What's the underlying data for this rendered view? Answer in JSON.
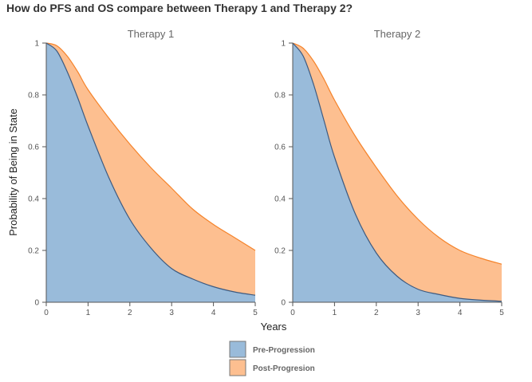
{
  "title": "How do PFS and OS compare between Therapy 1 and Therapy 2?",
  "colors": {
    "pre_fill": "#99bbda",
    "pre_line": "#3d5a80",
    "post_fill": "#fdbf90",
    "post_line": "#f5832a",
    "axis": "#555555"
  },
  "chart_data": {
    "type": "area",
    "xlabel": "Years",
    "ylabel": "Probability of Being in State",
    "xlim": [
      0,
      5
    ],
    "ylim": [
      0,
      1
    ],
    "x_ticks": [
      "0",
      "1",
      "2",
      "3",
      "4",
      "5"
    ],
    "y_ticks": [
      "0",
      "0.2",
      "0.4",
      "0.6",
      "0.8",
      "1"
    ],
    "legend": {
      "placement": "bottom",
      "entries": [
        "Pre-Progression",
        "Post-Progresion"
      ]
    },
    "grid": false,
    "panels": [
      {
        "name": "Therapy 1",
        "x": [
          0,
          0.25,
          0.5,
          0.75,
          1,
          1.5,
          2,
          2.5,
          3,
          3.5,
          4,
          4.5,
          5
        ],
        "series": [
          {
            "name": "Pre-Progression",
            "values": [
              1.0,
              0.97,
              0.89,
              0.79,
              0.68,
              0.48,
              0.32,
              0.21,
              0.13,
              0.09,
              0.06,
              0.04,
              0.027
            ]
          },
          {
            "name": "Post-Progresion",
            "values": [
              1.0,
              0.99,
              0.95,
              0.89,
              0.82,
              0.71,
              0.61,
              0.52,
              0.44,
              0.36,
              0.3,
              0.25,
              0.2
            ]
          }
        ]
      },
      {
        "name": "Therapy 2",
        "x": [
          0,
          0.25,
          0.5,
          0.75,
          1,
          1.5,
          2,
          2.5,
          3,
          3.5,
          4,
          4.5,
          5
        ],
        "series": [
          {
            "name": "Pre-Progression",
            "values": [
              1.0,
              0.95,
              0.84,
              0.7,
              0.56,
              0.34,
              0.19,
              0.1,
              0.05,
              0.03,
              0.015,
              0.008,
              0.004
            ]
          },
          {
            "name": "Post-Progresion",
            "values": [
              1.0,
              0.98,
              0.93,
              0.86,
              0.78,
              0.64,
              0.52,
              0.41,
              0.32,
              0.25,
              0.2,
              0.17,
              0.147
            ]
          }
        ]
      }
    ]
  }
}
